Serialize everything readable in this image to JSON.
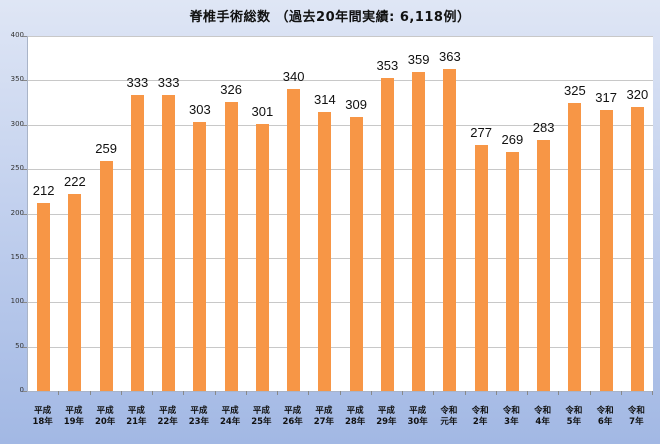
{
  "chart_data": {
    "type": "bar",
    "title": "脊椎手術総数 （過去20年間実績: 6,118例）",
    "xlabel": "",
    "ylabel": "",
    "ylim": [
      0,
      400
    ],
    "yticks": [
      0,
      50,
      100,
      150,
      200,
      250,
      300,
      350,
      400
    ],
    "grid": true,
    "legend": null,
    "bar_color": "#f79646",
    "categories": [
      [
        "平成",
        "18年"
      ],
      [
        "平成",
        "19年"
      ],
      [
        "平成",
        "20年"
      ],
      [
        "平成",
        "21年"
      ],
      [
        "平成",
        "22年"
      ],
      [
        "平成",
        "23年"
      ],
      [
        "平成",
        "24年"
      ],
      [
        "平成",
        "25年"
      ],
      [
        "平成",
        "26年"
      ],
      [
        "平成",
        "27年"
      ],
      [
        "平成",
        "28年"
      ],
      [
        "平成",
        "29年"
      ],
      [
        "平成",
        "30年"
      ],
      [
        "令和",
        "元年"
      ],
      [
        "令和",
        "2年"
      ],
      [
        "令和",
        "3年"
      ],
      [
        "令和",
        "4年"
      ],
      [
        "令和",
        "5年"
      ],
      [
        "令和",
        "6年"
      ],
      [
        "令和",
        "7年"
      ]
    ],
    "values": [
      212,
      222,
      259,
      333,
      333,
      303,
      326,
      301,
      340,
      314,
      309,
      353,
      359,
      363,
      277,
      269,
      283,
      325,
      317,
      320
    ]
  }
}
